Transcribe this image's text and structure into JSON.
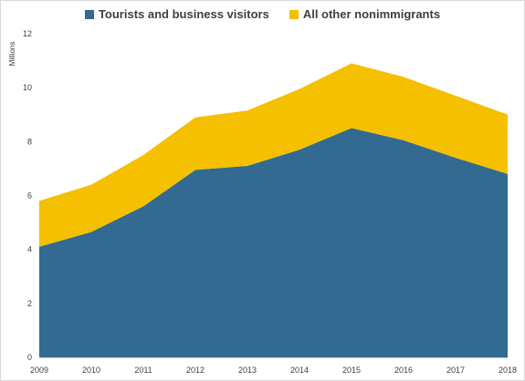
{
  "chart_data": {
    "type": "area",
    "stacked": true,
    "ylabel": "Millions",
    "xlabel": "",
    "ylim": [
      0,
      12
    ],
    "yticks": [
      0,
      2,
      4,
      6,
      8,
      10,
      12
    ],
    "x": [
      "2009",
      "2010",
      "2011",
      "2012",
      "2013",
      "2014",
      "2015",
      "2016",
      "2017",
      "2018"
    ],
    "series": [
      {
        "name": "Tourists and business visitors",
        "color": "#336a91",
        "values": [
          4.1,
          4.65,
          5.6,
          6.95,
          7.1,
          7.7,
          8.5,
          8.05,
          7.4,
          6.8
        ]
      },
      {
        "name": "All other nonimmigrants",
        "color": "#f4c000",
        "values": [
          1.7,
          1.75,
          1.9,
          1.95,
          2.05,
          2.25,
          2.4,
          2.35,
          2.3,
          2.2
        ]
      }
    ],
    "legend_position": "top-center",
    "grid": false
  }
}
